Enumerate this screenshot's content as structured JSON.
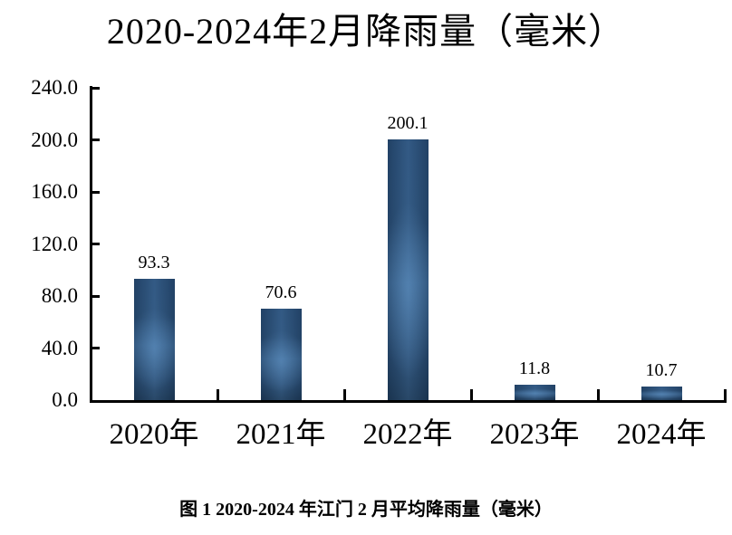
{
  "chart": {
    "title": "2020-2024年2月降雨量（毫米）"
  },
  "caption": "图 1 2020-2024 年江门 2 月平均降雨量（毫米）",
  "chart_data": {
    "type": "bar",
    "title": "2020-2024年2月降雨量（毫米）",
    "categories": [
      "2020年",
      "2021年",
      "2022年",
      "2023年",
      "2024年"
    ],
    "values": [
      93.3,
      70.6,
      200.1,
      11.8,
      10.7
    ],
    "value_labels": [
      "93.3",
      "70.6",
      "200.1",
      "11.8",
      "10.7"
    ],
    "xlabel": "",
    "ylabel": "",
    "ylim": [
      0,
      240
    ],
    "ytick_interval": 40,
    "ytick_labels": [
      "0.0",
      "40.0",
      "80.0",
      "120.0",
      "160.0",
      "200.0",
      "240.0"
    ],
    "grid": false,
    "legend_position": "none",
    "colors": {
      "bar_top": "#1f3c5b",
      "bar_mid_a": "#2d547e",
      "bar_mid": "#3b6897",
      "bar_mid_b": "#2c5179",
      "bar_bottom": "#203e5d",
      "axis": "#000000",
      "text": "#000000",
      "background": "#ffffff"
    }
  }
}
